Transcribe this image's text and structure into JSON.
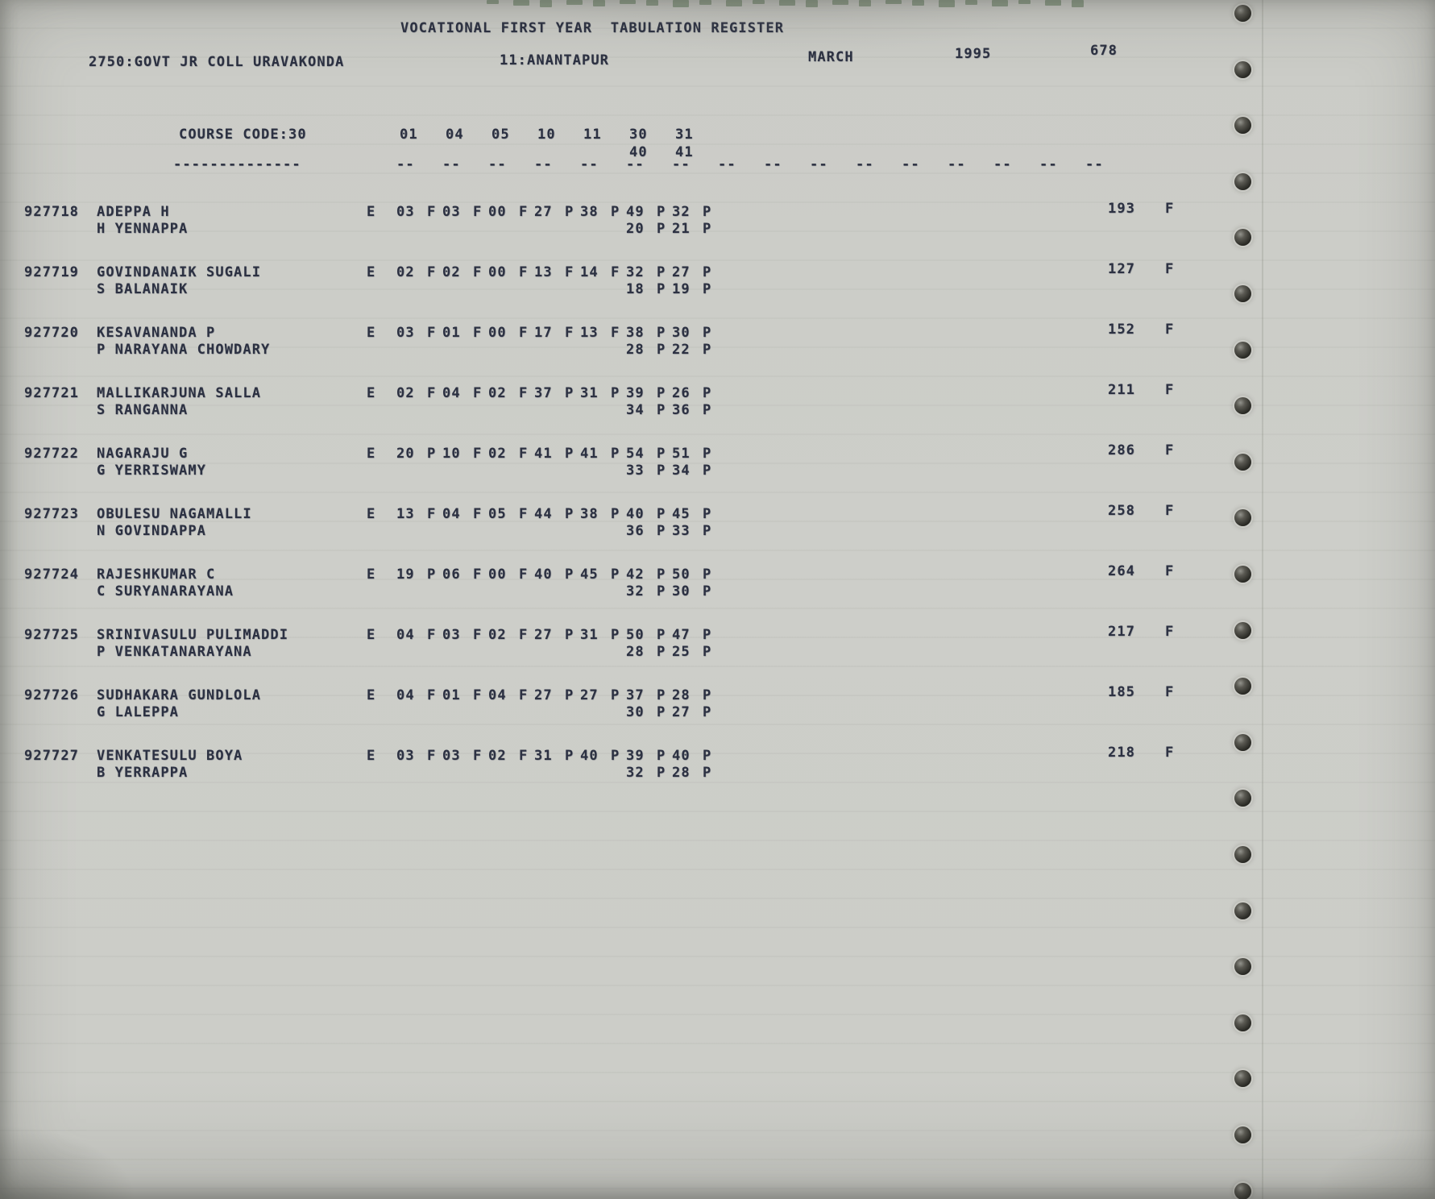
{
  "page": {
    "title": "VOCATIONAL FIRST YEAR  TABULATION REGISTER",
    "college": "2750:GOVT JR COLL URAVAKONDA",
    "district": "11:ANANTAPUR",
    "month": "MARCH",
    "year": "1995",
    "page_number": "678",
    "course_code_label": "COURSE CODE:30",
    "course_code_underline": "--------------",
    "subject_codes_row1": [
      "01",
      "04",
      "05",
      "10",
      "11",
      "30",
      "31"
    ],
    "subject_codes_row2": [
      "40",
      "41"
    ],
    "column_dash": "--",
    "dash_column_count": 16
  },
  "colors": {
    "paper": "#cbccc7",
    "ink": "#2c3142",
    "bleed_through_print": "#4f6b4a"
  },
  "rows": [
    {
      "reg_no": "927718",
      "name": "ADEPPA H",
      "guardian": "H YENNAPPA",
      "medium": "E",
      "marks": [
        [
          "03",
          "F"
        ],
        [
          "03",
          "F"
        ],
        [
          "00",
          "F"
        ],
        [
          "27",
          "P"
        ],
        [
          "38",
          "P"
        ],
        [
          "49",
          "P"
        ],
        [
          "32",
          "P"
        ]
      ],
      "marks2": [
        [
          "20",
          "P"
        ],
        [
          "21",
          "P"
        ]
      ],
      "total": "193",
      "result": "F"
    },
    {
      "reg_no": "927719",
      "name": "GOVINDANAIK SUGALI",
      "guardian": "S BALANAIK",
      "medium": "E",
      "marks": [
        [
          "02",
          "F"
        ],
        [
          "02",
          "F"
        ],
        [
          "00",
          "F"
        ],
        [
          "13",
          "F"
        ],
        [
          "14",
          "F"
        ],
        [
          "32",
          "P"
        ],
        [
          "27",
          "P"
        ]
      ],
      "marks2": [
        [
          "18",
          "P"
        ],
        [
          "19",
          "P"
        ]
      ],
      "total": "127",
      "result": "F"
    },
    {
      "reg_no": "927720",
      "name": "KESAVANANDA P",
      "guardian": "P NARAYANA CHOWDARY",
      "medium": "E",
      "marks": [
        [
          "03",
          "F"
        ],
        [
          "01",
          "F"
        ],
        [
          "00",
          "F"
        ],
        [
          "17",
          "F"
        ],
        [
          "13",
          "F"
        ],
        [
          "38",
          "P"
        ],
        [
          "30",
          "P"
        ]
      ],
      "marks2": [
        [
          "28",
          "P"
        ],
        [
          "22",
          "P"
        ]
      ],
      "total": "152",
      "result": "F"
    },
    {
      "reg_no": "927721",
      "name": "MALLIKARJUNA SALLA",
      "guardian": "S RANGANNA",
      "medium": "E",
      "marks": [
        [
          "02",
          "F"
        ],
        [
          "04",
          "F"
        ],
        [
          "02",
          "F"
        ],
        [
          "37",
          "P"
        ],
        [
          "31",
          "P"
        ],
        [
          "39",
          "P"
        ],
        [
          "26",
          "P"
        ]
      ],
      "marks2": [
        [
          "34",
          "P"
        ],
        [
          "36",
          "P"
        ]
      ],
      "total": "211",
      "result": "F"
    },
    {
      "reg_no": "927722",
      "name": "NAGARAJU G",
      "guardian": "G YERRISWAMY",
      "medium": "E",
      "marks": [
        [
          "20",
          "P"
        ],
        [
          "10",
          "F"
        ],
        [
          "02",
          "F"
        ],
        [
          "41",
          "P"
        ],
        [
          "41",
          "P"
        ],
        [
          "54",
          "P"
        ],
        [
          "51",
          "P"
        ]
      ],
      "marks2": [
        [
          "33",
          "P"
        ],
        [
          "34",
          "P"
        ]
      ],
      "total": "286",
      "result": "F"
    },
    {
      "reg_no": "927723",
      "name": "OBULESU NAGAMALLI",
      "guardian": "N GOVINDAPPA",
      "medium": "E",
      "marks": [
        [
          "13",
          "F"
        ],
        [
          "04",
          "F"
        ],
        [
          "05",
          "F"
        ],
        [
          "44",
          "P"
        ],
        [
          "38",
          "P"
        ],
        [
          "40",
          "P"
        ],
        [
          "45",
          "P"
        ]
      ],
      "marks2": [
        [
          "36",
          "P"
        ],
        [
          "33",
          "P"
        ]
      ],
      "total": "258",
      "result": "F"
    },
    {
      "reg_no": "927724",
      "name": "RAJESHKUMAR C",
      "guardian": "C SURYANARAYANA",
      "medium": "E",
      "marks": [
        [
          "19",
          "P"
        ],
        [
          "06",
          "F"
        ],
        [
          "00",
          "F"
        ],
        [
          "40",
          "P"
        ],
        [
          "45",
          "P"
        ],
        [
          "42",
          "P"
        ],
        [
          "50",
          "P"
        ]
      ],
      "marks2": [
        [
          "32",
          "P"
        ],
        [
          "30",
          "P"
        ]
      ],
      "total": "264",
      "result": "F"
    },
    {
      "reg_no": "927725",
      "name": "SRINIVASULU PULIMADDI",
      "guardian": "P VENKATANARAYANA",
      "medium": "E",
      "marks": [
        [
          "04",
          "F"
        ],
        [
          "03",
          "F"
        ],
        [
          "02",
          "F"
        ],
        [
          "27",
          "P"
        ],
        [
          "31",
          "P"
        ],
        [
          "50",
          "P"
        ],
        [
          "47",
          "P"
        ]
      ],
      "marks2": [
        [
          "28",
          "P"
        ],
        [
          "25",
          "P"
        ]
      ],
      "total": "217",
      "result": "F"
    },
    {
      "reg_no": "927726",
      "name": "SUDHAKARA GUNDLOLA",
      "guardian": "G LALEPPA",
      "medium": "E",
      "marks": [
        [
          "04",
          "F"
        ],
        [
          "01",
          "F"
        ],
        [
          "04",
          "F"
        ],
        [
          "27",
          "P"
        ],
        [
          "27",
          "P"
        ],
        [
          "37",
          "P"
        ],
        [
          "28",
          "P"
        ]
      ],
      "marks2": [
        [
          "30",
          "P"
        ],
        [
          "27",
          "P"
        ]
      ],
      "total": "185",
      "result": "F"
    },
    {
      "reg_no": "927727",
      "name": "VENKATESULU BOYA",
      "guardian": "B YERRAPPA",
      "medium": "E",
      "marks": [
        [
          "03",
          "F"
        ],
        [
          "03",
          "F"
        ],
        [
          "02",
          "F"
        ],
        [
          "31",
          "P"
        ],
        [
          "40",
          "P"
        ],
        [
          "39",
          "P"
        ],
        [
          "40",
          "P"
        ]
      ],
      "marks2": [
        [
          "32",
          "P"
        ],
        [
          "28",
          "P"
        ]
      ],
      "total": "218",
      "result": "F"
    }
  ]
}
